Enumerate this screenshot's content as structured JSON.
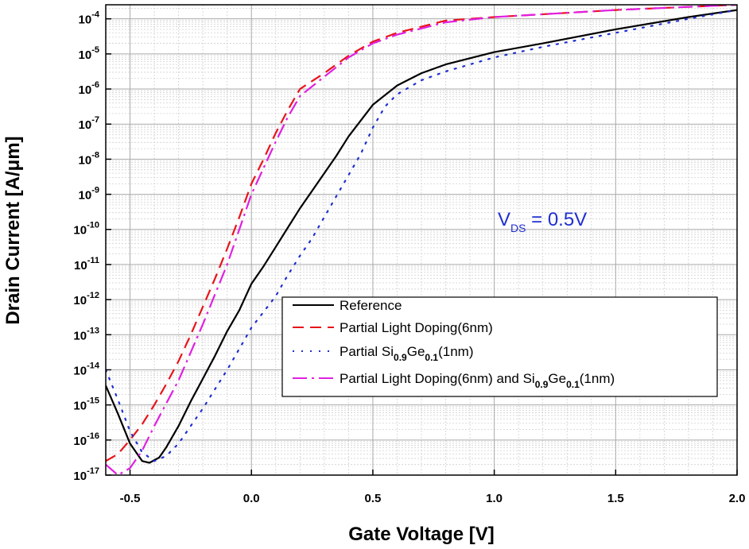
{
  "chart_data": {
    "type": "line",
    "xlabel": "Gate Voltage [V]",
    "ylabel": "Drain Current [A/μm]",
    "xlim": [
      -0.6,
      2.0
    ],
    "ylim_exponent": [
      -17,
      -3.6
    ],
    "y_scale": "log",
    "grid": true,
    "minor_grid": true,
    "legend_position": "lower-right",
    "x_ticks": [
      "-0.5",
      "0.0",
      "0.5",
      "1.0",
      "1.5",
      "2.0"
    ],
    "x_tick_values": [
      -0.5,
      0.0,
      0.5,
      1.0,
      1.5,
      2.0
    ],
    "y_ticks": [
      {
        "value": -4,
        "base": "10",
        "exp": "-4"
      },
      {
        "value": -5,
        "base": "10",
        "exp": "-5"
      },
      {
        "value": -6,
        "base": "10",
        "exp": "-6"
      },
      {
        "value": -7,
        "base": "10",
        "exp": "-7"
      },
      {
        "value": -8,
        "base": "10",
        "exp": "-8"
      },
      {
        "value": -9,
        "base": "10",
        "exp": "-9"
      },
      {
        "value": -10,
        "base": "10",
        "exp": "-10"
      },
      {
        "value": -11,
        "base": "10",
        "exp": "-11"
      },
      {
        "value": -12,
        "base": "10",
        "exp": "-12"
      },
      {
        "value": -13,
        "base": "10",
        "exp": "-13"
      },
      {
        "value": -14,
        "base": "10",
        "exp": "-14"
      },
      {
        "value": -15,
        "base": "10",
        "exp": "-15"
      },
      {
        "value": -16,
        "base": "10",
        "exp": "-16"
      },
      {
        "value": -17,
        "base": "10",
        "exp": "-17"
      }
    ],
    "annotation": {
      "main": "V",
      "sub": "DS",
      "rest": " = 0.5V",
      "color": "#1f2fd0"
    },
    "series": [
      {
        "name": "Reference",
        "legend_parts": [
          {
            "t": "Reference"
          }
        ],
        "color": "#000000",
        "dash": "",
        "width": 2.2,
        "x": [
          -0.6,
          -0.55,
          -0.5,
          -0.45,
          -0.42,
          -0.38,
          -0.35,
          -0.3,
          -0.25,
          -0.2,
          -0.15,
          -0.1,
          -0.05,
          0.0,
          0.05,
          0.1,
          0.15,
          0.2,
          0.25,
          0.3,
          0.35,
          0.4,
          0.5,
          0.6,
          0.7,
          0.8,
          1.0,
          1.2,
          1.5,
          1.8,
          2.0
        ],
        "y": [
          -14.45,
          -15.25,
          -16.1,
          -16.6,
          -16.65,
          -16.5,
          -16.2,
          -15.6,
          -14.9,
          -14.25,
          -13.6,
          -12.9,
          -12.3,
          -11.55,
          -11.05,
          -10.5,
          -9.95,
          -9.4,
          -8.9,
          -8.4,
          -7.9,
          -7.35,
          -6.45,
          -5.9,
          -5.55,
          -5.3,
          -4.95,
          -4.7,
          -4.3,
          -3.95,
          -3.75
        ]
      },
      {
        "name": "Partial Light Doping(6nm)",
        "legend_parts": [
          {
            "t": "Partial Light Doping(6nm)"
          }
        ],
        "color": "#e8141a",
        "dash": "14,8",
        "width": 2.2,
        "x": [
          -0.6,
          -0.55,
          -0.5,
          -0.45,
          -0.4,
          -0.35,
          -0.3,
          -0.25,
          -0.2,
          -0.15,
          -0.1,
          -0.05,
          0.0,
          0.05,
          0.1,
          0.15,
          0.2,
          0.3,
          0.4,
          0.5,
          0.6,
          0.8,
          1.0,
          1.5,
          2.0
        ],
        "y": [
          -16.6,
          -16.4,
          -16.0,
          -15.55,
          -15.0,
          -14.4,
          -13.75,
          -13.0,
          -12.2,
          -11.4,
          -10.55,
          -9.65,
          -8.7,
          -8.0,
          -7.25,
          -6.6,
          -6.0,
          -5.55,
          -5.05,
          -4.65,
          -4.4,
          -4.05,
          -3.95,
          -3.75,
          -3.6
        ]
      },
      {
        "name": "Partial Si0.9Ge0.1(1nm)",
        "legend_parts": [
          {
            "t": "Partial Si"
          },
          {
            "t": "0.9",
            "sub": true
          },
          {
            "t": "Ge"
          },
          {
            "t": "0.1",
            "sub": true
          },
          {
            "t": "(1nm)"
          }
        ],
        "color": "#1f2fd0",
        "dash": "2,9",
        "width": 2.2,
        "x": [
          -0.6,
          -0.55,
          -0.5,
          -0.45,
          -0.4,
          -0.35,
          -0.3,
          -0.25,
          -0.2,
          -0.15,
          -0.1,
          -0.05,
          0.0,
          0.05,
          0.1,
          0.15,
          0.2,
          0.25,
          0.3,
          0.35,
          0.4,
          0.45,
          0.5,
          0.55,
          0.6,
          0.7,
          0.8,
          1.0,
          1.2,
          1.5,
          1.8,
          2.0
        ],
        "y": [
          -14.0,
          -14.85,
          -15.75,
          -16.35,
          -16.6,
          -16.45,
          -16.1,
          -15.6,
          -15.1,
          -14.55,
          -14.0,
          -13.4,
          -12.8,
          -12.35,
          -11.9,
          -11.3,
          -10.75,
          -10.25,
          -9.65,
          -9.05,
          -8.45,
          -7.85,
          -7.1,
          -6.5,
          -6.15,
          -5.75,
          -5.5,
          -5.1,
          -4.8,
          -4.4,
          -4.0,
          -3.75
        ]
      },
      {
        "name": "Partial Light Doping(6nm) and Si0.9Ge0.1(1nm)",
        "legend_parts": [
          {
            "t": "Partial Light Doping(6nm) and Si"
          },
          {
            "t": "0.9",
            "sub": true
          },
          {
            "t": "Ge"
          },
          {
            "t": "0.1",
            "sub": true
          },
          {
            "t": "(1nm)"
          }
        ],
        "color": "#e020e0",
        "dash": "18,6,3,6",
        "width": 2.2,
        "x": [
          -0.6,
          -0.55,
          -0.5,
          -0.45,
          -0.4,
          -0.35,
          -0.3,
          -0.25,
          -0.2,
          -0.15,
          -0.1,
          -0.05,
          0.0,
          0.05,
          0.1,
          0.15,
          0.2,
          0.3,
          0.4,
          0.5,
          0.6,
          0.8,
          1.0,
          1.5,
          2.0
        ],
        "y": [
          -16.7,
          -17.0,
          -16.8,
          -16.3,
          -15.6,
          -14.95,
          -14.3,
          -13.5,
          -12.7,
          -11.85,
          -11.0,
          -10.0,
          -9.0,
          -8.25,
          -7.5,
          -6.8,
          -6.2,
          -5.65,
          -5.1,
          -4.7,
          -4.45,
          -4.1,
          -3.95,
          -3.75,
          -3.6
        ]
      }
    ]
  }
}
